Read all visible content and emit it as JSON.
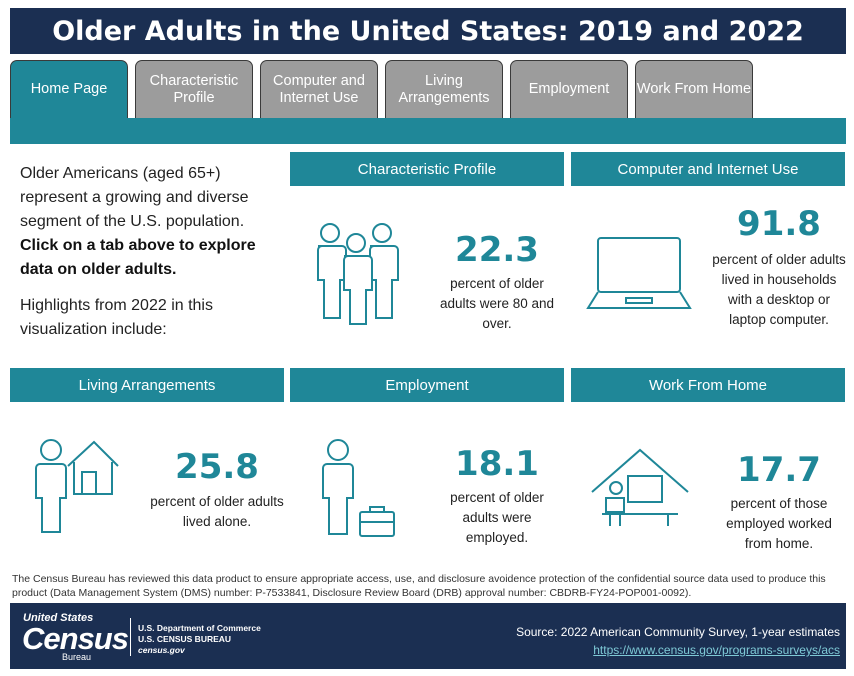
{
  "title": "Older Adults in the United States: 2019 and 2022",
  "tabs": [
    {
      "label": "Home Page"
    },
    {
      "label": "Characteristic Profile"
    },
    {
      "label": "Computer and Internet Use"
    },
    {
      "label": "Living Arrangements"
    },
    {
      "label": "Employment"
    },
    {
      "label": "Work From Home"
    }
  ],
  "intro": {
    "p1": "Older Americans (aged 65+) represent a growing and diverse segment of the U.S. population.",
    "p1_bold": "Click on a tab above to explore data on older adults.",
    "p2": "Highlights from 2022 in this visualization include:"
  },
  "panels": {
    "characteristic": {
      "heading": "Characteristic Profile",
      "value": "22.3",
      "desc": "percent of older adults were 80 and over.",
      "icon": "people-group-icon"
    },
    "computer": {
      "heading": "Computer and Internet Use",
      "value": "91.8",
      "desc": "percent of older adults lived in households with a desktop or laptop computer.",
      "icon": "laptop-icon"
    },
    "living": {
      "heading": "Living Arrangements",
      "value": "25.8",
      "desc": "percent of older adults lived alone.",
      "icon": "person-house-icon"
    },
    "employment": {
      "heading": "Employment",
      "value": "18.1",
      "desc": "percent of older adults were employed.",
      "icon": "person-briefcase-icon"
    },
    "wfh": {
      "heading": "Work From Home",
      "value": "17.7",
      "desc": "percent of those employed worked from home.",
      "icon": "home-office-icon"
    }
  },
  "disclaimer": "The Census Bureau has reviewed this data product to ensure appropriate access, use, and disclosure avoidence protection of the confidential source data used to produce this product (Data Management System (DMS) number: P-7533841, Disclosure Review Board (DRB) approval number: CBDRB-FY24-POP001-0092).",
  "footer": {
    "logo_top": "United States",
    "logo_main": "Census",
    "logo_sub": "Bureau",
    "dept_line1": "U.S. Department of Commerce",
    "dept_line2": "U.S. CENSUS BUREAU",
    "dept_line3": "census.gov",
    "source": "Source: 2022 American Community Survey, 1-year estimates",
    "link": "https://www.census.gov/programs-surveys/acs"
  },
  "colors": {
    "accent": "#1f8798",
    "navy": "#1b2f52",
    "tab_inactive": "#9c9c9c"
  }
}
